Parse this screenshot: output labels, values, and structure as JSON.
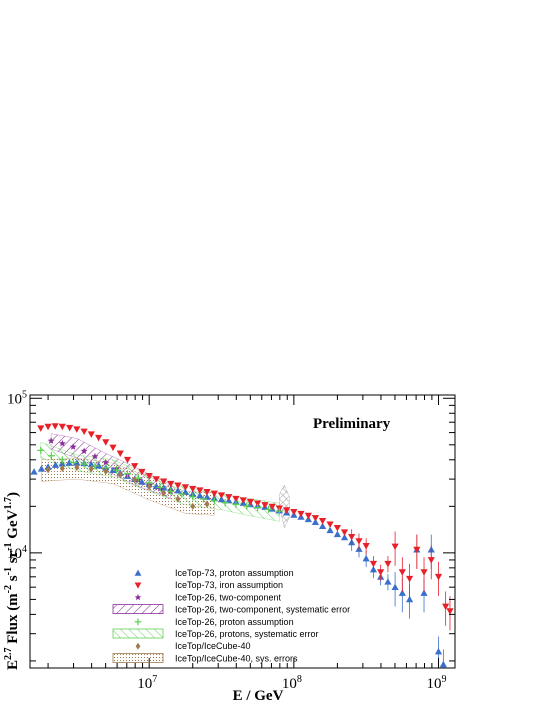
{
  "chart_data": {
    "type": "scatter",
    "title": "",
    "annotation": "Preliminary",
    "xlabel": "E / GeV",
    "ylabel": "E^2.7 Flux (m^-2 s^-1 sr^-1 GeV^1.7)",
    "x_scale": "log",
    "y_scale": "log",
    "xlim": [
      1500000,
      1300000000
    ],
    "ylim": [
      1800,
      105000
    ],
    "x_ticks": [
      {
        "value": 10000000,
        "base": "10",
        "exp": "7"
      },
      {
        "value": 100000000,
        "base": "10",
        "exp": "8"
      },
      {
        "value": 1000000000,
        "base": "10",
        "exp": "9"
      }
    ],
    "y_ticks": [
      {
        "value": 10000,
        "base": "10",
        "exp": "4"
      },
      {
        "value": 100000,
        "base": "10",
        "exp": "5"
      }
    ],
    "legend_position": "bottom-left",
    "series": [
      {
        "name": "IceTop-73, proton assumption",
        "marker": "triangle-up",
        "color": "#3a6fcc",
        "x": [
          1600000,
          1800000,
          2000000,
          2250000,
          2500000,
          2800000,
          3160000,
          3550000,
          3980000,
          4470000,
          5010000,
          5620000,
          6310000,
          7080000,
          7940000,
          8910000,
          10000000,
          11200000,
          12600000,
          14100000,
          15800000,
          17800000,
          20000000,
          22400000,
          25100000,
          28200000,
          31600000,
          35500000,
          39800000,
          44700000,
          50100000,
          56200000,
          63100000,
          70800000,
          79400000,
          89100000,
          100000000,
          112000000,
          126000000,
          141000000,
          158000000,
          178000000,
          200000000,
          224000000,
          251000000,
          282000000,
          316000000,
          355000000,
          398000000,
          447000000,
          501000000,
          562000000,
          631000000,
          708000000,
          794000000,
          891000000,
          1000000000,
          1080000000
        ],
        "values": [
          33500,
          35000,
          36000,
          37000,
          37800,
          38200,
          38300,
          38000,
          37400,
          36600,
          35600,
          34300,
          32900,
          31400,
          30000,
          28800,
          27800,
          27000,
          26400,
          25900,
          25300,
          24700,
          24100,
          23500,
          23000,
          22600,
          22200,
          21800,
          21400,
          21000,
          20600,
          20200,
          19800,
          19300,
          18800,
          18200,
          17600,
          17100,
          16500,
          15800,
          14900,
          14000,
          13200,
          12600,
          11700,
          10600,
          9200,
          7800,
          7000,
          6500,
          6000,
          5500,
          5000,
          10500,
          5500,
          10500,
          2300,
          1900
        ]
      },
      {
        "name": "IceTop-73, iron assumption",
        "marker": "triangle-down",
        "color": "#e8202a",
        "x": [
          1780000,
          2000000,
          2240000,
          2510000,
          2820000,
          3160000,
          3550000,
          3980000,
          4470000,
          5010000,
          5620000,
          6310000,
          7080000,
          7940000,
          8910000,
          10000000,
          11200000,
          12600000,
          14100000,
          15800000,
          17800000,
          20000000,
          22400000,
          25100000,
          28200000,
          31600000,
          35500000,
          39800000,
          44700000,
          50100000,
          56200000,
          63100000,
          70800000,
          79400000,
          89100000,
          100000000,
          112000000,
          126000000,
          141000000,
          158000000,
          178000000,
          200000000,
          224000000,
          251000000,
          282000000,
          316000000,
          355000000,
          398000000,
          447000000,
          501000000,
          562000000,
          631000000,
          708000000,
          794000000,
          891000000,
          1000000000,
          1120000000,
          1200000000
        ],
        "values": [
          64000,
          65500,
          66000,
          65500,
          64500,
          63000,
          61000,
          58500,
          55500,
          52000,
          48000,
          44000,
          40000,
          36500,
          33500,
          31500,
          30000,
          29000,
          28000,
          27300,
          26600,
          26000,
          25400,
          24800,
          24200,
          23600,
          23000,
          22400,
          21900,
          21400,
          20900,
          20400,
          19900,
          19400,
          18900,
          18400,
          17900,
          17400,
          16800,
          16100,
          15300,
          14500,
          13600,
          12700,
          11900,
          11100,
          8500,
          7500,
          8500,
          11000,
          7500,
          6800,
          10500,
          7500,
          9000,
          7000,
          4500,
          4200
        ]
      },
      {
        "name": "IceTop-26, two-component",
        "marker": "star",
        "color": "#8b2f9a",
        "x": [
          2100000,
          2510000,
          2980000,
          3550000,
          4220000,
          5010000,
          5960000,
          7080000,
          8410000,
          10000000,
          11900000,
          14100000
        ],
        "values": [
          53000,
          51000,
          48500,
          45500,
          42000,
          38500,
          35000,
          32000,
          29500,
          27500,
          26000,
          25000
        ]
      },
      {
        "name": "IceTop-26, two-component, systematic error",
        "marker": "band",
        "color": "#8b2f9a",
        "x": [
          2100000,
          3160000,
          5010000,
          7940000,
          12600000,
          14100000
        ],
        "low": [
          47000,
          41000,
          34000,
          27500,
          23500,
          22500
        ],
        "high": [
          59000,
          55000,
          44000,
          36000,
          29000,
          28000
        ]
      },
      {
        "name": "IceTop-26, proton assumption",
        "marker": "cross",
        "color": "#5ccf52",
        "x": [
          1780000,
          2110000,
          2510000,
          2990000,
          3550000,
          4220000,
          5010000,
          5960000,
          7080000,
          8410000,
          10000000,
          11900000,
          14100000,
          16800000,
          20000000,
          23700000,
          28200000,
          33500000,
          39800000,
          47300000,
          56200000,
          66800000,
          79400000
        ],
        "values": [
          46000,
          42500,
          40000,
          38500,
          37500,
          36500,
          35500,
          34300,
          32500,
          30500,
          28300,
          26500,
          25000,
          24000,
          23000,
          22300,
          21700,
          21100,
          20600,
          20100,
          19600,
          19100,
          18600
        ]
      },
      {
        "name": "IceTop-26, protons, systematic error",
        "marker": "band",
        "color": "#5ccf52",
        "x": [
          1780000,
          3160000,
          5620000,
          10000000,
          17800000,
          31600000,
          56200000,
          79400000
        ],
        "low": [
          41000,
          34000,
          31000,
          25000,
          20500,
          19000,
          17000,
          16000
        ],
        "high": [
          52000,
          43000,
          40000,
          32000,
          26500,
          24000,
          22000,
          21000
        ]
      },
      {
        "name": "IceTop/IceCube-40",
        "marker": "diamond",
        "color": "#a07a4e",
        "x": [
          2000000,
          2510000,
          3160000,
          3980000,
          5010000,
          6310000,
          7940000,
          10000000,
          12600000,
          15800000,
          20000000,
          25100000
        ],
        "values": [
          34500,
          35200,
          35700,
          35000,
          33700,
          32000,
          29600,
          26800,
          24400,
          22300,
          20000,
          20700
        ]
      },
      {
        "name": "IceTop/IceCube-40, sys. errors",
        "marker": "band",
        "color": "#a07a4e",
        "x": [
          1800000,
          3160000,
          5620000,
          10000000,
          17800000,
          28200000
        ],
        "low": [
          29000,
          30000,
          28000,
          22000,
          18000,
          17500
        ],
        "high": [
          40000,
          41000,
          38000,
          31000,
          25000,
          24500
        ]
      },
      {
        "name": "",
        "marker": "band",
        "color": "#888888",
        "x": [
          79400000,
          86000000,
          93000000
        ],
        "low": [
          20000,
          14500,
          17000
        ],
        "high": [
          24000,
          27500,
          23000
        ]
      }
    ]
  }
}
